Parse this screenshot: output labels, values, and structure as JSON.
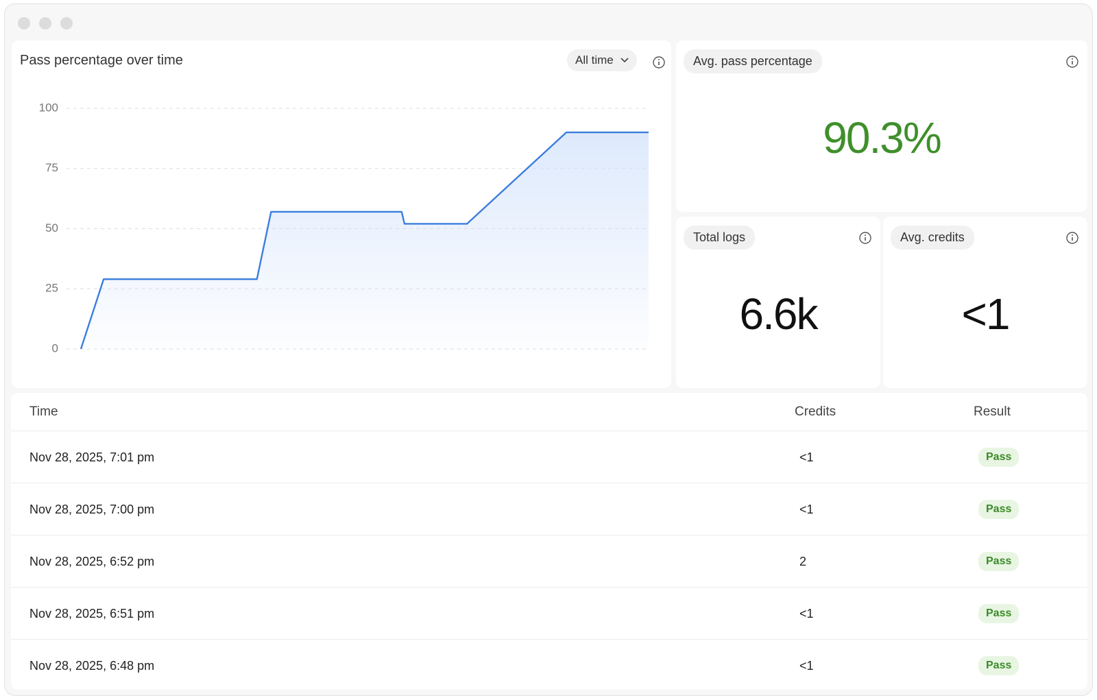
{
  "chart_data": {
    "type": "line",
    "title": "Pass percentage over time",
    "filter": "All time",
    "x": [
      0,
      4,
      31,
      33.5,
      56.5,
      57,
      68,
      85.5,
      100
    ],
    "series": [
      {
        "name": "Pass percentage",
        "color": "#3b7ddd",
        "values": [
          0,
          29,
          29,
          57,
          57,
          52,
          52,
          90,
          90
        ]
      }
    ],
    "xlim": [
      0,
      100
    ],
    "ylim": [
      0,
      100
    ],
    "yticks": [
      0,
      25,
      50,
      75,
      100
    ],
    "grid": true
  },
  "stats": [
    {
      "label": "Avg. pass percentage",
      "value": "90.3%"
    },
    {
      "label": "Total logs",
      "value": "6.6k"
    },
    {
      "label": "Avg. credits",
      "value": "<1"
    }
  ],
  "table": {
    "columns": [
      "Time",
      "Credits",
      "Result"
    ],
    "rows": [
      [
        "Nov 28, 2025, 7:01 pm",
        "<1",
        "Pass"
      ],
      [
        "Nov 28, 2025, 7:00 pm",
        "<1",
        "Pass"
      ],
      [
        "Nov 28, 2025, 6:52 pm",
        2,
        "Pass"
      ],
      [
        "Nov 28, 2025, 6:51 pm",
        "<1",
        "Pass"
      ],
      [
        "Nov 28, 2025, 6:48 pm",
        "<1",
        "Pass"
      ]
    ]
  }
}
